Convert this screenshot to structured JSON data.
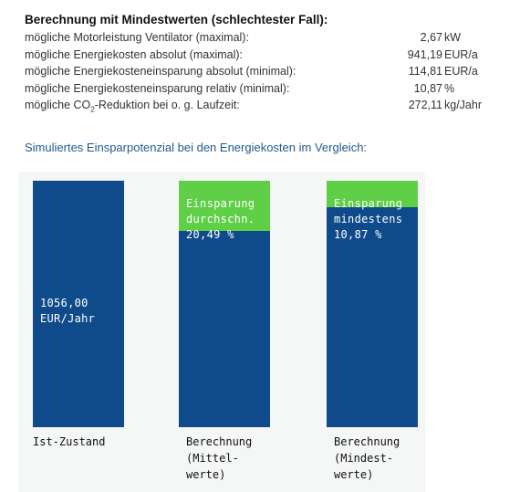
{
  "summary": {
    "title": "Berechnung mit Mindestwerten (schlechtester Fall):",
    "rows": [
      {
        "label": "mögliche Motorleistung Ventilator (maximal):",
        "value": "2,67",
        "unit": "kW"
      },
      {
        "label": "mögliche Energiekosten absolut (maximal):",
        "value": "941,19",
        "unit": "EUR/a"
      },
      {
        "label": "mögliche Energiekosteneinsparung absolut (minimal):",
        "value": "114,81",
        "unit": "EUR/a"
      },
      {
        "label": "mögliche Energiekosteneinsparung relativ (minimal):",
        "value": "10,87",
        "unit": "%"
      },
      {
        "label_pre": "mögliche CO",
        "label_sub": "2",
        "label_post": "-Reduktion bei o. g. Laufzeit:",
        "value": "272,11",
        "unit": "kg/Jahr"
      }
    ]
  },
  "chart_title": "Simuliertes Einsparpotenzial bei den Energiekosten im Vergleich:",
  "bars": [
    {
      "text": "1056,00\nEUR/Jahr",
      "x_label": "Ist-Zustand"
    },
    {
      "overlay_text": "Einsparung\ndurchschn.\n20,49 %",
      "x_label": "Berechnung\n(Mittel-\nwerte)",
      "saving_percent": 20.49
    },
    {
      "overlay_text": "Einsparung\nmindestens\n10,87 %",
      "x_label": "Berechnung\n(Mindest-\nwerte)",
      "saving_percent": 10.87
    }
  ],
  "colors": {
    "bar": "#0f4b8a",
    "saving": "#5fcf47",
    "title": "#1f5b8c"
  }
}
